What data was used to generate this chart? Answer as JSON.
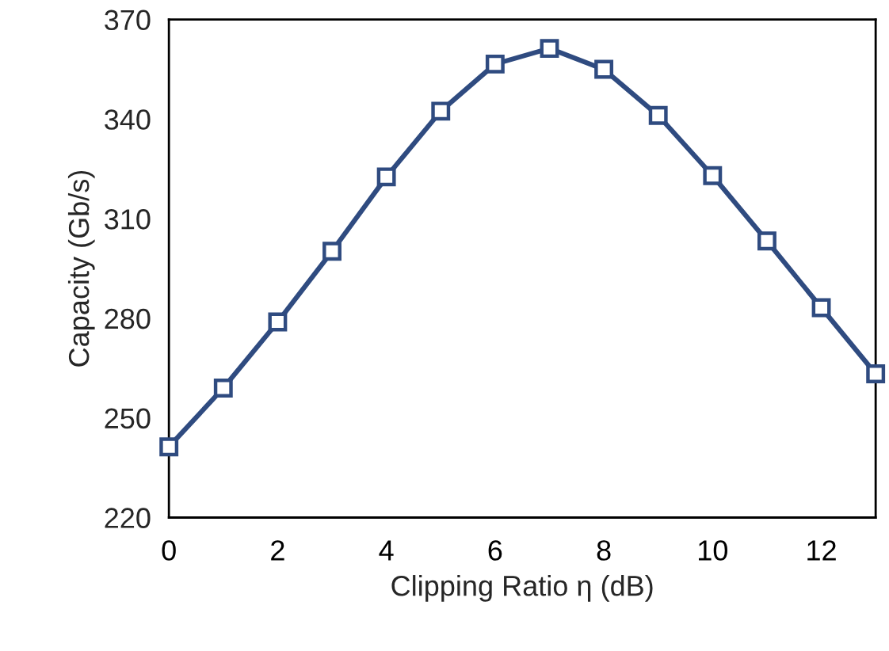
{
  "chart_data": {
    "type": "line",
    "xlabel": "Clipping Ratio η (dB)",
    "ylabel": "Capacity (Gb/s)",
    "x": [
      0,
      1,
      2,
      3,
      4,
      5,
      6,
      7,
      8,
      9,
      10,
      11,
      12,
      13
    ],
    "series": [
      {
        "color": "#2f4b80",
        "values": [
          241.3,
          259,
          278.9,
          300.2,
          322.6,
          342.4,
          356.6,
          361.3,
          355,
          341.1,
          323,
          303.3,
          283.2,
          263.3
        ]
      }
    ],
    "xlim": [
      0,
      13
    ],
    "xticks": [
      0,
      2,
      4,
      6,
      8,
      10,
      12
    ],
    "ylim": [
      220,
      370
    ],
    "yticks": [
      220,
      250,
      280,
      310,
      340,
      370
    ],
    "marker": "square",
    "line_style": "solid",
    "grid": false,
    "legend": false
  }
}
